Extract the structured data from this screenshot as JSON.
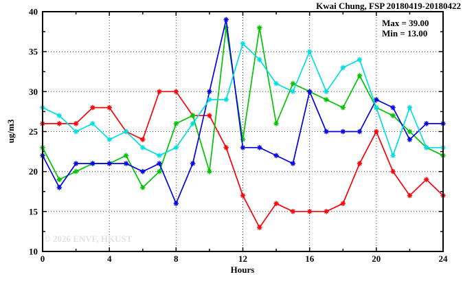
{
  "title": "Kwai Chung, FSP 20180419-20180422",
  "annotations": {
    "max_label": "Max = 39.00",
    "min_label": "Min = 13.00"
  },
  "watermark": "© 2026 ENVF, HKUST",
  "axes": {
    "xlabel": "Hours",
    "ylabel": "ug/m3"
  },
  "chart_data": {
    "type": "line",
    "title": "Kwai Chung, FSP 20180419-20180422",
    "xlabel": "Hours",
    "ylabel": "ug/m3",
    "xlim": [
      0,
      24
    ],
    "ylim": [
      10,
      40
    ],
    "xticks": [
      0,
      4,
      8,
      12,
      16,
      20,
      24
    ],
    "xticks_minor": [
      2,
      6,
      10,
      14,
      18,
      22
    ],
    "yticks": [
      10,
      15,
      20,
      25,
      30,
      35,
      40
    ],
    "yticks_minor": [
      12.5,
      17.5,
      22.5,
      27.5,
      32.5,
      37.5
    ],
    "grid": true,
    "legend": "none",
    "x": [
      0,
      1,
      2,
      3,
      4,
      5,
      6,
      7,
      8,
      9,
      10,
      11,
      12,
      13,
      14,
      15,
      16,
      17,
      18,
      19,
      20,
      21,
      22,
      23,
      24
    ],
    "series": [
      {
        "name": "day-1-red",
        "color": "#fb0006",
        "values": [
          26,
          26,
          26,
          28,
          28,
          25,
          24,
          30,
          30,
          27,
          27,
          23,
          17,
          13,
          16,
          15,
          15,
          15,
          16,
          21,
          25,
          20,
          17,
          19,
          17
        ]
      },
      {
        "name": "day-2-green",
        "color": "#00c400",
        "values": [
          23,
          19,
          20,
          21,
          21,
          22,
          18,
          20,
          26,
          27,
          20,
          38,
          24,
          38,
          26,
          31,
          30,
          29,
          28,
          32,
          28,
          27,
          25,
          23,
          22
        ]
      },
      {
        "name": "day-3-blue",
        "color": "#0000ea",
        "values": [
          22,
          18,
          21,
          21,
          21,
          21,
          20,
          21,
          16,
          21,
          30,
          39,
          23,
          23,
          22,
          21,
          30,
          25,
          25,
          25,
          29,
          28,
          24,
          26,
          26
        ]
      },
      {
        "name": "day-4-cyan",
        "color": "#00dfdf",
        "values": [
          28,
          27,
          25,
          26,
          24,
          25,
          23,
          22,
          23,
          26,
          29,
          29,
          36,
          34,
          31,
          30,
          35,
          30,
          33,
          34,
          28,
          22,
          28,
          23,
          23
        ]
      }
    ],
    "stats": {
      "max": 39.0,
      "min": 13.0
    }
  }
}
